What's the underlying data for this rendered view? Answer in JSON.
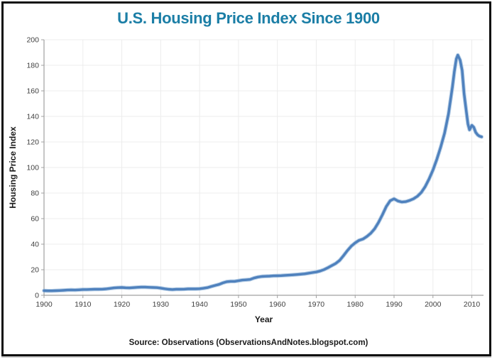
{
  "window": {
    "background_color": "#ffffff",
    "frame_border_color": "#0e0e0e"
  },
  "chart": {
    "title": "U.S. Housing Price Index Since 1900",
    "title_color": "#1b7ea6",
    "source": "Source: Observations  (ObservationsAndNotes.blogspot.com)"
  },
  "chart_data": {
    "type": "line",
    "title": "U.S. Housing Price Index Since 1900",
    "xlabel": "Year",
    "ylabel": "Housing Price Index",
    "xlim": [
      1900,
      2013
    ],
    "ylim": [
      0,
      200
    ],
    "x_ticks": [
      1900,
      1910,
      1920,
      1930,
      1940,
      1950,
      1960,
      1970,
      1980,
      1990,
      2000,
      2010
    ],
    "y_ticks": [
      0,
      20,
      40,
      60,
      80,
      100,
      120,
      140,
      160,
      180,
      200
    ],
    "grid": true,
    "legend": false,
    "line_color": "#4f81bd",
    "line_halo_color": "#8fb3d9",
    "axis_color": "#a0a0a0",
    "grid_color": "#ececec",
    "tick_label_color": "#3f3f3f",
    "axis_title_color": "#1a1a1a",
    "series": [
      {
        "name": "U.S. Housing Price Index",
        "x": [
          1900,
          1901,
          1902,
          1903,
          1904,
          1905,
          1906,
          1907,
          1908,
          1909,
          1910,
          1911,
          1912,
          1913,
          1914,
          1915,
          1916,
          1917,
          1918,
          1919,
          1920,
          1921,
          1922,
          1923,
          1924,
          1925,
          1926,
          1927,
          1928,
          1929,
          1930,
          1931,
          1932,
          1933,
          1934,
          1935,
          1936,
          1937,
          1938,
          1939,
          1940,
          1941,
          1942,
          1943,
          1944,
          1945,
          1946,
          1947,
          1948,
          1949,
          1950,
          1951,
          1952,
          1953,
          1954,
          1955,
          1956,
          1957,
          1958,
          1959,
          1960,
          1961,
          1962,
          1963,
          1964,
          1965,
          1966,
          1967,
          1968,
          1969,
          1970,
          1971,
          1972,
          1973,
          1974,
          1975,
          1976,
          1977,
          1978,
          1979,
          1980,
          1981,
          1982,
          1983,
          1984,
          1985,
          1986,
          1987,
          1988,
          1989,
          1990,
          1991,
          1992,
          1993,
          1994,
          1995,
          1996,
          1997,
          1998,
          1999,
          2000,
          2001,
          2002,
          2003,
          2004,
          2005,
          2005.5,
          2006,
          2006.4,
          2007,
          2007.5,
          2008,
          2008.5,
          2009,
          2009.4,
          2010,
          2010.5,
          2011,
          2011.5,
          2012,
          2012.5
        ],
        "y": [
          3.6,
          3.5,
          3.5,
          3.6,
          3.7,
          3.9,
          4.1,
          4.2,
          4.1,
          4.3,
          4.5,
          4.5,
          4.6,
          4.7,
          4.7,
          4.8,
          5.0,
          5.4,
          5.8,
          6.0,
          6.1,
          5.9,
          5.8,
          6.0,
          6.2,
          6.4,
          6.4,
          6.2,
          6.1,
          6.0,
          5.6,
          5.1,
          4.7,
          4.5,
          4.7,
          4.7,
          4.8,
          5.0,
          5.0,
          5.0,
          5.1,
          5.5,
          6.0,
          6.9,
          7.7,
          8.5,
          9.7,
          10.6,
          10.9,
          10.9,
          11.4,
          11.9,
          12.1,
          12.4,
          13.5,
          14.3,
          14.7,
          14.9,
          15.0,
          15.2,
          15.3,
          15.4,
          15.6,
          15.8,
          16.0,
          16.2,
          16.5,
          16.8,
          17.3,
          17.8,
          18.2,
          19.0,
          20.1,
          21.6,
          23.3,
          24.9,
          27.3,
          31.0,
          35.0,
          38.5,
          41.0,
          43.0,
          44.0,
          46.0,
          48.5,
          52.0,
          57.0,
          63.0,
          69.5,
          74.0,
          75.5,
          73.8,
          73.0,
          73.3,
          74.2,
          75.5,
          77.5,
          80.5,
          85.0,
          91.0,
          98.0,
          106.5,
          116.0,
          127.0,
          142.0,
          163.0,
          175.0,
          185.0,
          188.0,
          184.0,
          176.0,
          158.0,
          146.0,
          134.0,
          129.5,
          133.0,
          131.5,
          127.5,
          125.5,
          124.5,
          124.0
        ]
      }
    ]
  }
}
